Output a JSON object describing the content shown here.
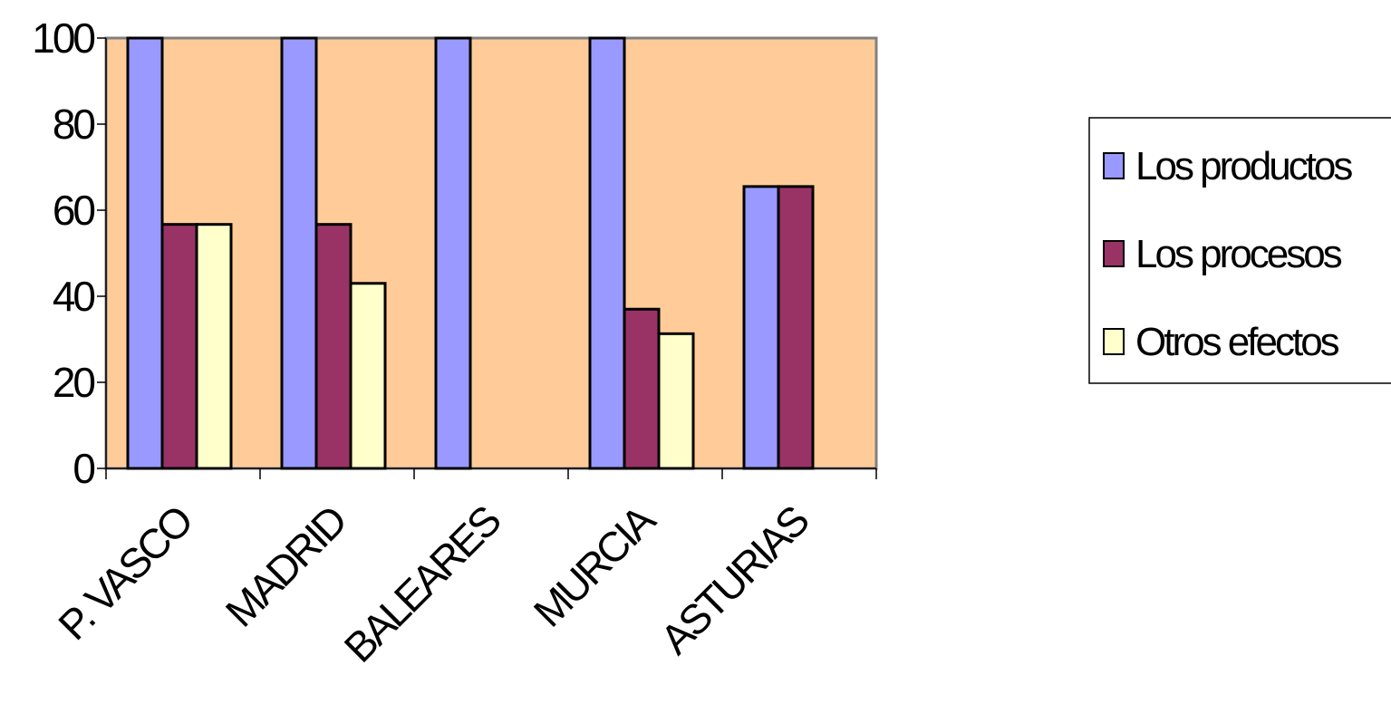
{
  "chart_data": {
    "type": "bar",
    "categories": [
      "P. VASCO",
      "MADRID",
      "BALEARES",
      "MURCIA",
      "ASTURIAS"
    ],
    "series": [
      {
        "name": "Los productos",
        "color": "#9999ff",
        "values": [
          100,
          100,
          100,
          100,
          65.5
        ]
      },
      {
        "name": "Los procesos",
        "color": "#993366",
        "values": [
          56.7,
          56.7,
          0,
          37,
          65.5
        ]
      },
      {
        "name": "Otros efectos",
        "color": "#ffffcc",
        "values": [
          56.7,
          43,
          0,
          31.3,
          0
        ]
      }
    ],
    "ylim": [
      0,
      100
    ],
    "yticks": [
      "0",
      "20",
      "40",
      "60",
      "80",
      "100"
    ],
    "plot_background": "#ffcc99",
    "grid": false,
    "legend_position": "right",
    "title": "",
    "xlabel": "",
    "ylabel": ""
  }
}
